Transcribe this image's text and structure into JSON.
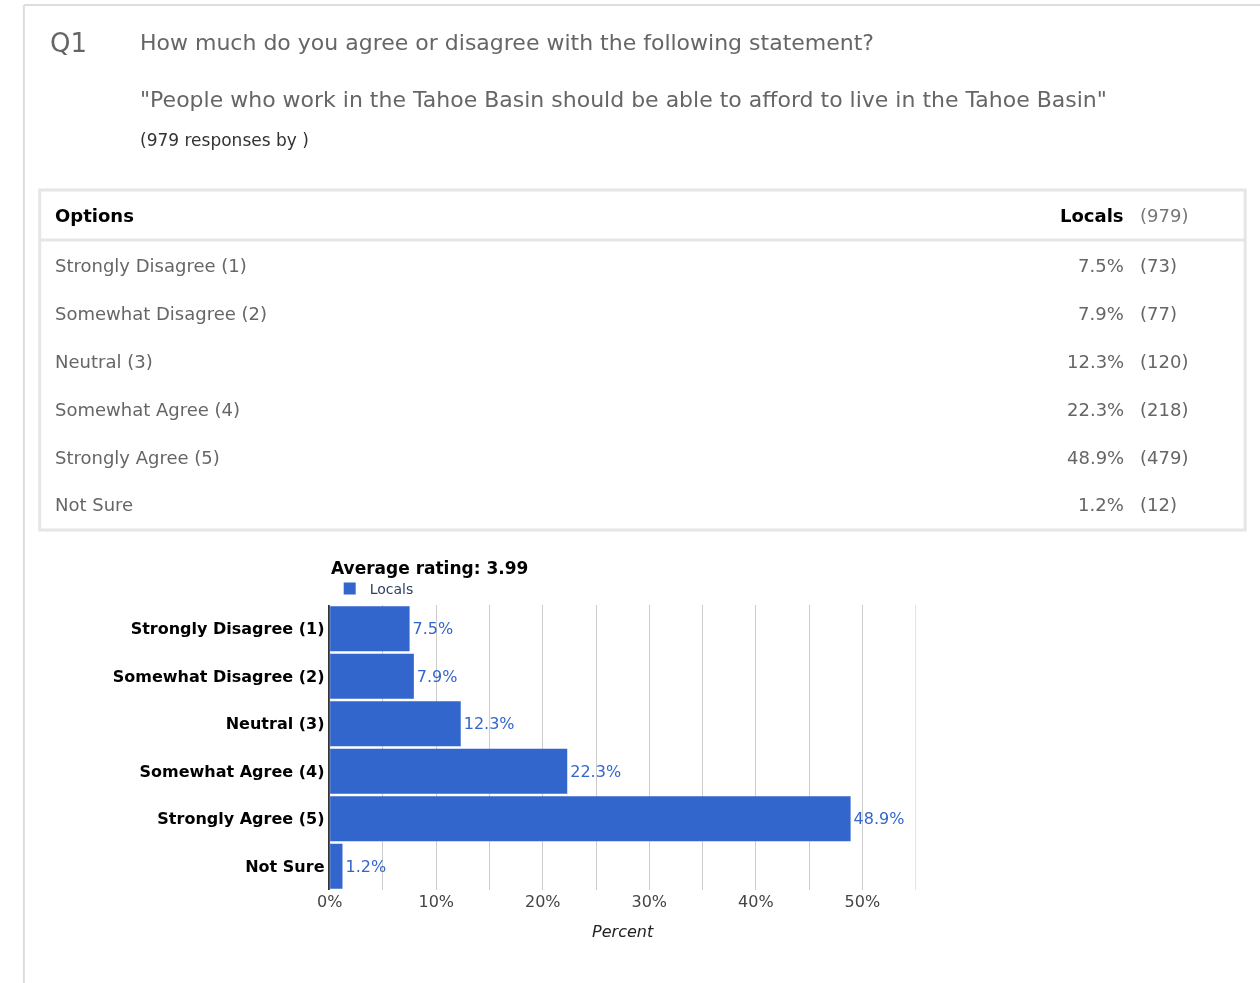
{
  "chart_data": {
    "type": "bar",
    "orientation": "horizontal",
    "title": "How much do you agree or disagree with the following statement?",
    "subtitle": "\"People who work in the Tahoe Basin should be able to afford to live in the Tahoe Basin\"",
    "annotations": [
      "Q1",
      "(979 responses by )",
      "Average rating: 3.99",
      "Options",
      "Locals",
      "(979)",
      "(73)",
      "(77)",
      "(120)",
      "(218)",
      "(479)",
      "(12)"
    ],
    "categories": [
      "Strongly Disagree (1)",
      "Somewhat Disagree (2)",
      "Neutral (3)",
      "Somewhat Agree (4)",
      "Strongly Agree (5)",
      "Not Sure"
    ],
    "series": [
      {
        "name": "Locals",
        "color": "#3366cc",
        "values": [
          7.5,
          7.9,
          12.3,
          22.3,
          48.9,
          1.2
        ],
        "value_labels": [
          "7.5%",
          "7.9%",
          "12.3%",
          "22.3%",
          "48.9%",
          "1.2%"
        ]
      }
    ],
    "xlabel": "Percent",
    "xlim": [
      0,
      55
    ],
    "xticks": [
      {
        "value": 0,
        "label": "0%"
      },
      {
        "value": 5,
        "label": null
      },
      {
        "value": 10,
        "label": "10%"
      },
      {
        "value": 15,
        "label": null
      },
      {
        "value": 20,
        "label": "20%"
      },
      {
        "value": 25,
        "label": null
      },
      {
        "value": 30,
        "label": "30%"
      },
      {
        "value": 35,
        "label": null
      },
      {
        "value": 40,
        "label": "40%"
      },
      {
        "value": 45,
        "label": null
      },
      {
        "value": 50,
        "label": "50%"
      },
      {
        "value": 55,
        "label": null
      }
    ],
    "grid": "x",
    "legend": "top left"
  }
}
